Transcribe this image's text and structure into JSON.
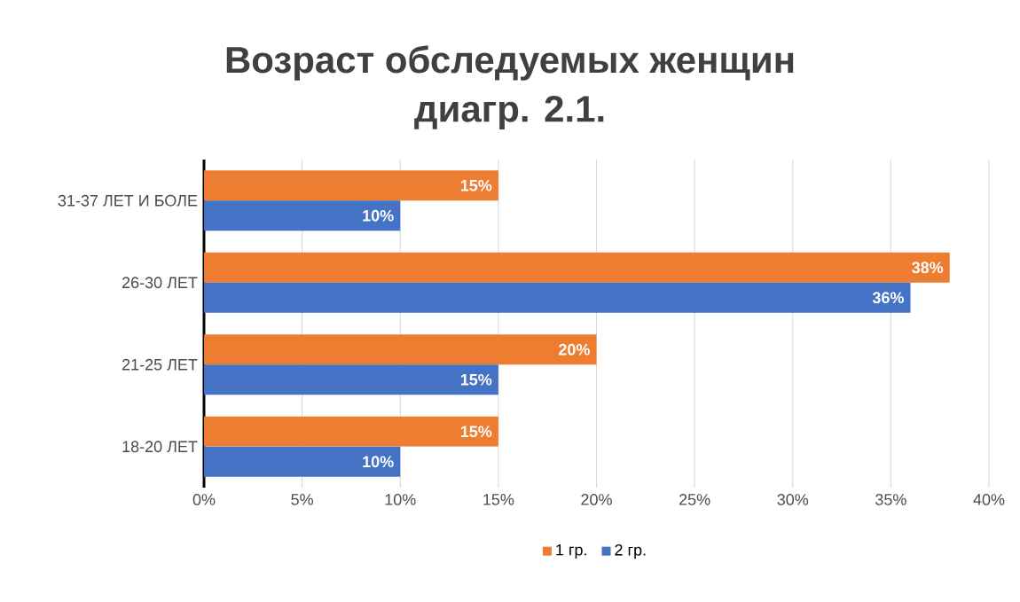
{
  "chart_data": {
    "type": "bar",
    "orientation": "horizontal",
    "title": "Возраст обследуемых женщин",
    "subtitle": "диагр. 2.1.",
    "categories": [
      "31-37 ЛЕТ И БОЛЕ",
      "26-30 ЛЕТ",
      "21-25 ЛЕТ",
      "18-20 ЛЕТ"
    ],
    "series": [
      {
        "name": "1 гр.",
        "color": "#ed7d31",
        "values": [
          15,
          38,
          20,
          15
        ],
        "value_labels": [
          "15%",
          "38%",
          "20%",
          "15%"
        ]
      },
      {
        "name": "2 гр.",
        "color": "#4472c4",
        "values": [
          10,
          36,
          15,
          10
        ],
        "value_labels": [
          "10%",
          "36%",
          "15%",
          "10%"
        ]
      }
    ],
    "xlim": [
      0,
      40
    ],
    "xticks": [
      {
        "value": 0,
        "label": "0%"
      },
      {
        "value": 5,
        "label": "5%"
      },
      {
        "value": 10,
        "label": "10%"
      },
      {
        "value": 15,
        "label": "15%"
      },
      {
        "value": 20,
        "label": "20%"
      },
      {
        "value": 25,
        "label": "25%"
      },
      {
        "value": 30,
        "label": "30%"
      },
      {
        "value": 35,
        "label": "35%"
      },
      {
        "value": 40,
        "label": "40%"
      }
    ],
    "grid": "x",
    "legend": "bottom"
  }
}
